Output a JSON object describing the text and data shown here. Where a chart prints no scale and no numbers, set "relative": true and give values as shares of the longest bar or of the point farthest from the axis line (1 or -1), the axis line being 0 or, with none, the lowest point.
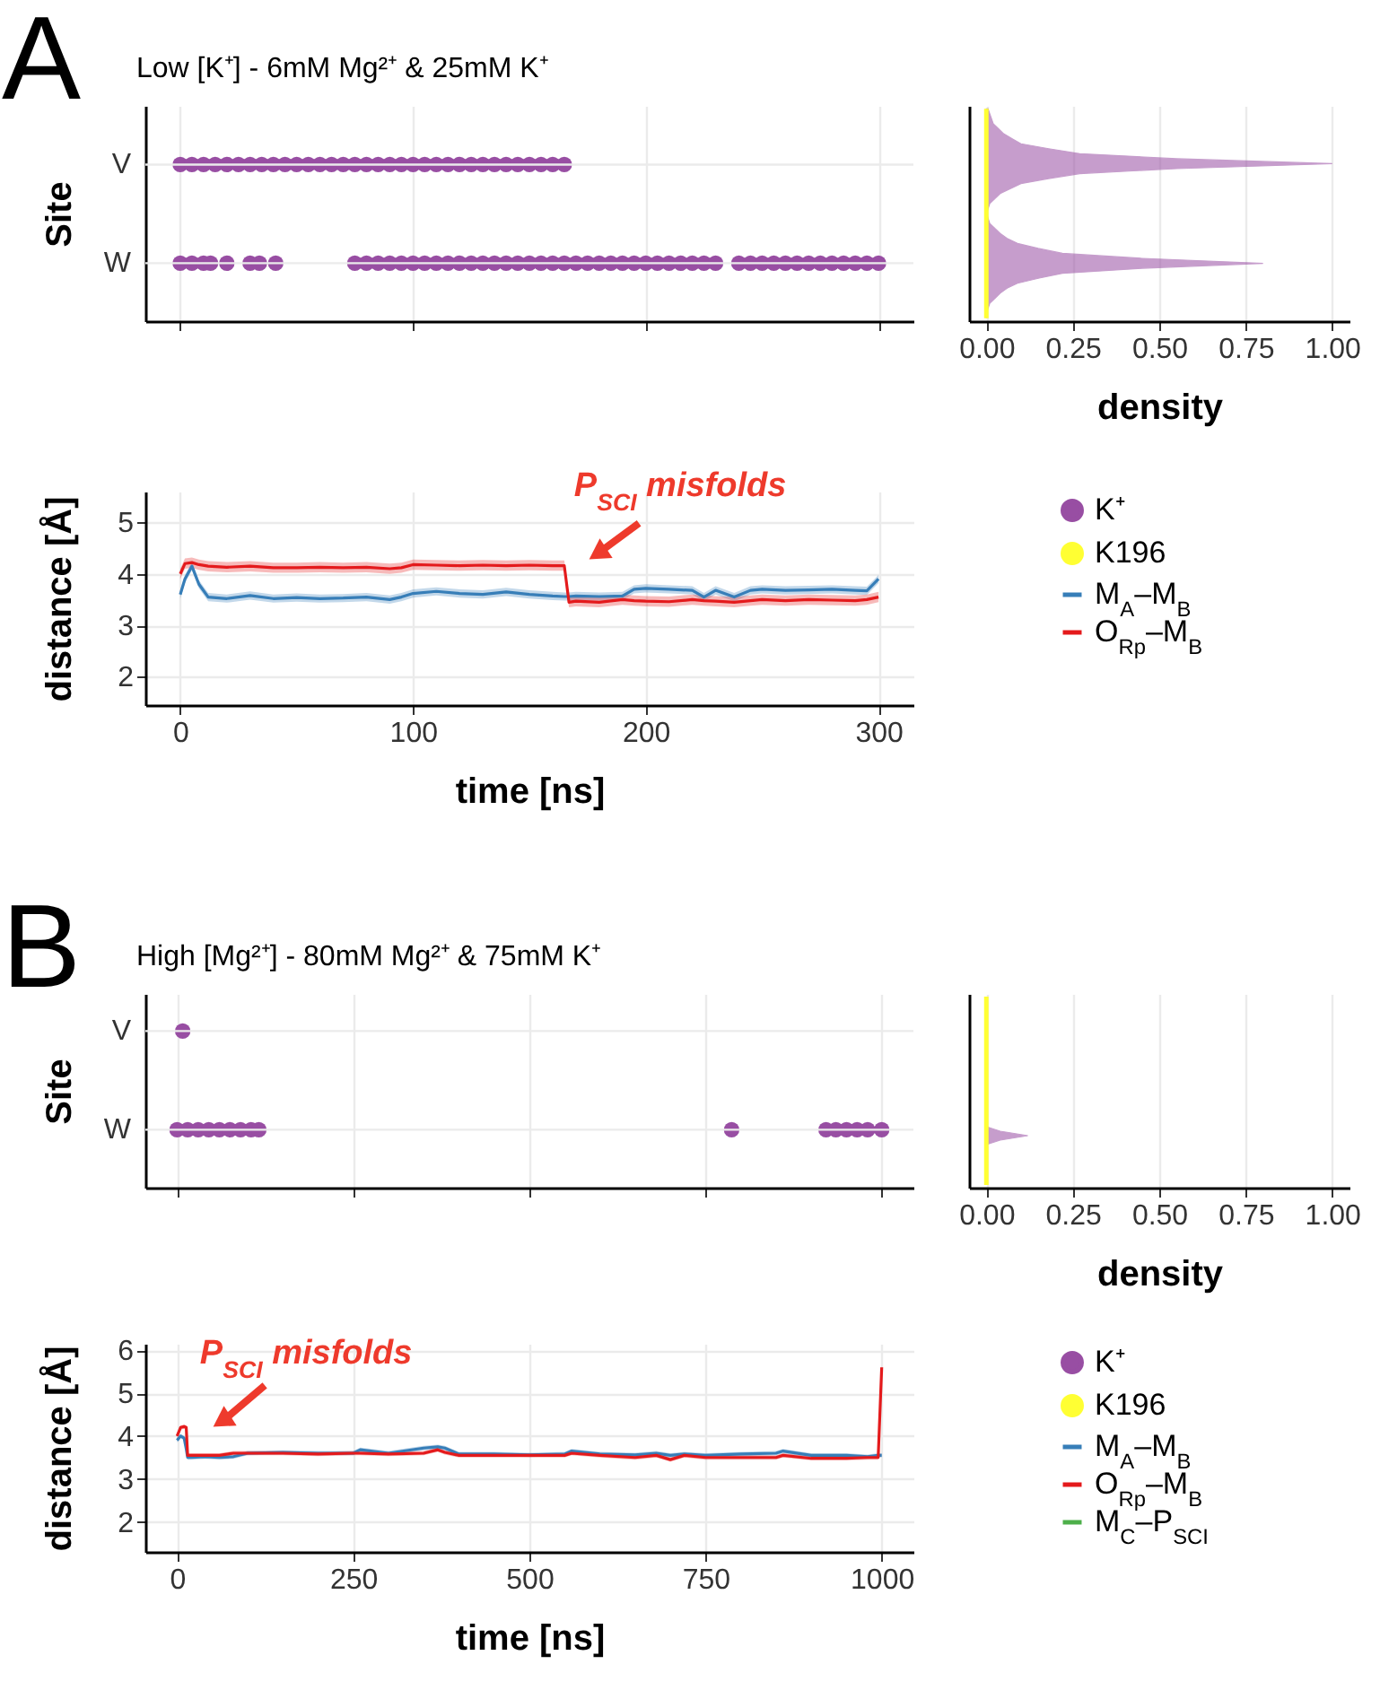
{
  "chart_data": [
    {
      "type": "scatter",
      "relative": true,
      "title": "Low [K⁺] - 6mM Mg²⁺ & 25mM K⁺",
      "annotations": [
        "A",
        "V",
        "W"
      ],
      "ylabel": "Site",
      "xlim": [
        -15,
        315
      ],
      "xticks": [
        0,
        100,
        200,
        300
      ],
      "tick_labels": false,
      "grid": "x",
      "marker": "circle",
      "series": [
        {
          "name": "K⁺",
          "color": "#984ea3",
          "x": [
            0,
            5,
            10,
            15,
            20,
            25,
            30,
            35,
            40,
            45,
            50,
            55,
            60,
            65,
            70,
            75,
            80,
            85,
            90,
            95,
            100,
            105,
            110,
            115,
            120,
            125,
            130,
            135,
            140,
            145,
            150,
            155,
            160,
            165,
            0,
            5,
            10,
            13,
            20,
            30,
            34,
            41,
            75,
            80,
            85,
            90,
            95,
            100,
            105,
            110,
            115,
            120,
            125,
            130,
            135,
            140,
            145,
            150,
            155,
            160,
            165,
            170,
            175,
            180,
            185,
            190,
            195,
            200,
            205,
            210,
            215,
            220,
            225,
            230,
            240,
            245,
            250,
            255,
            260,
            265,
            270,
            275,
            280,
            285,
            290,
            295,
            300
          ],
          "values": [
            1,
            1,
            1,
            1,
            1,
            1,
            1,
            1,
            1,
            1,
            1,
            1,
            1,
            1,
            1,
            1,
            1,
            1,
            1,
            1,
            1,
            1,
            1,
            1,
            1,
            1,
            1,
            1,
            1,
            1,
            1,
            1,
            1,
            1,
            0.37,
            0.37,
            0.37,
            0.37,
            0.37,
            0.37,
            0.37,
            0.37,
            0.37,
            0.37,
            0.37,
            0.37,
            0.37,
            0.37,
            0.37,
            0.37,
            0.37,
            0.37,
            0.37,
            0.37,
            0.37,
            0.37,
            0.37,
            0.37,
            0.37,
            0.37,
            0.37,
            0.37,
            0.37,
            0.37,
            0.37,
            0.37,
            0.37,
            0.37,
            0.37,
            0.37,
            0.37,
            0.37,
            0.37,
            0.37,
            0.37,
            0.37,
            0.37,
            0.37,
            0.37,
            0.37,
            0.37,
            0.37,
            0.37,
            0.37,
            0.37,
            0.37,
            0.37
          ]
        }
      ]
    },
    {
      "type": "area",
      "orientation": "horizontal",
      "xlabel": "density",
      "xlim": [
        -0.05,
        1.05
      ],
      "xticks": [
        {
          "value": 0,
          "label": "0.00"
        },
        {
          "value": 0.25,
          "label": "0.25"
        },
        {
          "value": 0.5,
          "label": "0.50"
        },
        {
          "value": 0.75,
          "label": "0.75"
        },
        {
          "value": 1,
          "label": "1.00"
        }
      ],
      "tick_labels": "x",
      "grid": "x",
      "categories": [
        null,
        null,
        null,
        null,
        null,
        null,
        null,
        null,
        null,
        null,
        null,
        null,
        null,
        null,
        null,
        null,
        null,
        null,
        null,
        null,
        null,
        null,
        null,
        null,
        null,
        null,
        null,
        null,
        null,
        null,
        null,
        null,
        null,
        null,
        null,
        null,
        null,
        null,
        null,
        null,
        null,
        null,
        null
      ],
      "series": [
        {
          "color": "#984ea3",
          "values": [
            0.005,
            0.01,
            0.015,
            0.02,
            0.035,
            0.05,
            0.075,
            0.1,
            0.18,
            0.27,
            0.55,
            1.0,
            0.55,
            0.27,
            0.18,
            0.1,
            0.07,
            0.04,
            0.025,
            0.01,
            0.005,
            0,
            0.005,
            0.01,
            0.025,
            0.04,
            0.06,
            0.09,
            0.15,
            0.22,
            0.45,
            0.8,
            0.45,
            0.22,
            0.15,
            0.09,
            0.06,
            0.04,
            0.025,
            0.01,
            0.005,
            0,
            0
          ]
        },
        {
          "name": "K196",
          "type": "line",
          "color": "#ffff33",
          "values": [
            0,
            0,
            0,
            0,
            0,
            0,
            0,
            0,
            0,
            0,
            0,
            0,
            0,
            0,
            0,
            0,
            0,
            0,
            0,
            0,
            0,
            0,
            0,
            0,
            0,
            0,
            0,
            0,
            0,
            0,
            0,
            0,
            0,
            0,
            0,
            0,
            0,
            0,
            0,
            0,
            0,
            0,
            0
          ]
        }
      ]
    },
    {
      "type": "line",
      "xlabel": "time [ns]",
      "ylabel": "distance [Å]",
      "xlim": [
        -15,
        315
      ],
      "xticks": [
        0,
        100,
        200,
        300
      ],
      "ylim": [
        1.45,
        5.6
      ],
      "yticks": [
        2,
        3,
        4,
        5
      ],
      "grid": true,
      "legend": "right",
      "line_style": "solid",
      "annotations": [
        {
          "text": "P$_{SCI}$ misfolds",
          "x": 167,
          "y": 3.45
        }
      ],
      "x": [
        0,
        2,
        5,
        8,
        12,
        20,
        30,
        40,
        50,
        60,
        70,
        80,
        90,
        95,
        100,
        110,
        120,
        130,
        140,
        150,
        160,
        165,
        167,
        170,
        180,
        190,
        195,
        200,
        210,
        220,
        225,
        230,
        238,
        245,
        250,
        260,
        270,
        280,
        290,
        295,
        300
      ],
      "series": [
        {
          "name": "M$_{A}$–M$_{B}$",
          "color": "#377eb8",
          "values": [
            3.6,
            3.9,
            4.15,
            3.8,
            3.55,
            3.52,
            3.58,
            3.52,
            3.54,
            3.52,
            3.53,
            3.55,
            3.5,
            3.55,
            3.62,
            3.66,
            3.62,
            3.6,
            3.65,
            3.6,
            3.57,
            3.56,
            3.56,
            3.57,
            3.56,
            3.57,
            3.7,
            3.72,
            3.7,
            3.68,
            3.55,
            3.68,
            3.55,
            3.68,
            3.7,
            3.68,
            3.69,
            3.7,
            3.68,
            3.67,
            3.9
          ],
          "lower": [
            3.52,
            3.82,
            4.07,
            3.72,
            3.47,
            3.44,
            3.5,
            3.44,
            3.46,
            3.44,
            3.45,
            3.47,
            3.42,
            3.47,
            3.54,
            3.58,
            3.54,
            3.52,
            3.57,
            3.52,
            3.49,
            3.48,
            3.48,
            3.49,
            3.48,
            3.49,
            3.62,
            3.64,
            3.62,
            3.6,
            3.47,
            3.6,
            3.47,
            3.6,
            3.62,
            3.6,
            3.61,
            3.62,
            3.6,
            3.59,
            3.82
          ],
          "upper": [
            3.68,
            3.98,
            4.23,
            3.88,
            3.63,
            3.6,
            3.66,
            3.6,
            3.62,
            3.6,
            3.61,
            3.63,
            3.58,
            3.63,
            3.7,
            3.74,
            3.7,
            3.68,
            3.73,
            3.68,
            3.65,
            3.64,
            3.64,
            3.65,
            3.64,
            3.65,
            3.78,
            3.8,
            3.78,
            3.76,
            3.63,
            3.76,
            3.63,
            3.76,
            3.78,
            3.76,
            3.77,
            3.78,
            3.76,
            3.75,
            3.98
          ]
        },
        {
          "name": "O$_{Rp}$–M$_{B}$",
          "color": "#e41a1c",
          "values": [
            4.0,
            4.2,
            4.22,
            4.18,
            4.15,
            4.13,
            4.15,
            4.12,
            4.12,
            4.13,
            4.12,
            4.13,
            4.1,
            4.12,
            4.18,
            4.17,
            4.16,
            4.17,
            4.16,
            4.17,
            4.16,
            4.16,
            3.45,
            3.47,
            3.45,
            3.5,
            3.48,
            3.47,
            3.46,
            3.5,
            3.48,
            3.47,
            3.45,
            3.48,
            3.5,
            3.48,
            3.5,
            3.49,
            3.48,
            3.5,
            3.55
          ],
          "lower": [
            3.9,
            4.1,
            4.12,
            4.08,
            4.05,
            4.03,
            4.05,
            4.02,
            4.02,
            4.03,
            4.02,
            4.03,
            4.0,
            4.02,
            4.08,
            4.07,
            4.06,
            4.07,
            4.06,
            4.07,
            4.06,
            4.06,
            3.35,
            3.37,
            3.35,
            3.4,
            3.38,
            3.37,
            3.36,
            3.4,
            3.38,
            3.37,
            3.35,
            3.38,
            3.4,
            3.38,
            3.4,
            3.39,
            3.38,
            3.4,
            3.45
          ],
          "upper": [
            4.1,
            4.3,
            4.32,
            4.28,
            4.25,
            4.23,
            4.25,
            4.22,
            4.22,
            4.23,
            4.22,
            4.23,
            4.2,
            4.22,
            4.28,
            4.27,
            4.26,
            4.27,
            4.26,
            4.27,
            4.26,
            4.26,
            3.55,
            3.57,
            3.55,
            3.6,
            3.58,
            3.57,
            3.56,
            3.6,
            3.58,
            3.57,
            3.55,
            3.58,
            3.6,
            3.58,
            3.6,
            3.59,
            3.58,
            3.6,
            3.65
          ]
        }
      ]
    },
    {
      "type": "scatter",
      "relative": true,
      "title": "High [Mg²⁺] - 80mM Mg²⁺ & 75mM K⁺",
      "annotations": [
        "B",
        "V",
        "W"
      ],
      "ylabel": "Site",
      "xlim": [
        -45,
        1045
      ],
      "xticks": [
        0,
        250,
        500,
        750,
        1000
      ],
      "tick_labels": false,
      "grid": "x",
      "marker": "circle",
      "series": [
        {
          "name": "K⁺",
          "color": "#984ea3",
          "x": [
            8,
            0,
            15,
            30,
            45,
            60,
            75,
            90,
            105,
            116,
            787,
            921,
            935,
            950,
            965,
            980,
            1000
          ],
          "values": [
            1,
            0.37,
            0.37,
            0.37,
            0.37,
            0.37,
            0.37,
            0.37,
            0.37,
            0.37,
            0.37,
            0.37,
            0.37,
            0.37,
            0.37,
            0.37,
            0.37
          ]
        }
      ]
    },
    {
      "type": "area",
      "orientation": "horizontal",
      "xlabel": "density",
      "xlim": [
        -0.05,
        1.05
      ],
      "xticks": [
        {
          "value": 0,
          "label": "0.00"
        },
        {
          "value": 0.25,
          "label": "0.25"
        },
        {
          "value": 0.5,
          "label": "0.50"
        },
        {
          "value": 0.75,
          "label": "0.75"
        },
        {
          "value": 1,
          "label": "1.00"
        }
      ],
      "tick_labels": "x",
      "grid": "x",
      "categories": [
        null,
        null,
        null,
        null,
        null,
        null,
        null,
        null,
        null,
        null,
        null,
        null,
        null,
        null,
        null,
        null,
        null,
        null,
        null,
        null,
        null,
        null,
        null,
        null,
        null,
        null,
        null,
        null,
        null,
        null,
        null,
        null,
        null,
        null,
        null,
        null,
        null,
        null,
        null,
        null,
        null,
        null,
        null
      ],
      "series": [
        {
          "color": "#984ea3",
          "values": [
            0,
            0,
            0,
            0,
            0,
            0,
            0,
            0,
            0,
            0,
            0,
            0,
            0,
            0,
            0,
            0,
            0,
            0,
            0,
            0,
            0,
            0,
            0,
            0,
            0,
            0,
            0,
            0,
            0,
            0,
            0.04,
            0.12,
            0.04,
            0,
            0,
            0,
            0,
            0,
            0,
            0,
            0,
            0,
            0
          ]
        },
        {
          "name": "K196",
          "type": "line",
          "color": "#ffff33",
          "values": [
            0,
            0,
            0,
            0,
            0,
            0,
            0,
            0,
            0,
            0,
            0,
            0,
            0,
            0,
            0,
            0,
            0,
            0,
            0,
            0,
            0,
            0,
            0,
            0,
            0,
            0,
            0,
            0,
            0,
            0,
            0,
            0,
            0,
            0,
            0,
            0,
            0,
            0,
            0,
            0,
            0,
            0,
            0
          ]
        }
      ]
    },
    {
      "type": "line",
      "xlabel": "time [ns]",
      "ylabel": "distance [Å]",
      "xlim": [
        -45,
        1045
      ],
      "xticks": [
        0,
        250,
        500,
        750,
        1000
      ],
      "ylim": [
        1.3,
        6.15
      ],
      "yticks": [
        2,
        3,
        4,
        5,
        6
      ],
      "grid": true,
      "legend": "right",
      "line_style": "solid",
      "annotations": [
        {
          "text": "P$_{SCI}$ misfolds",
          "x": 15,
          "y": 3.55
        }
      ],
      "x": [
        0,
        5,
        10,
        13,
        15,
        20,
        40,
        60,
        80,
        100,
        150,
        200,
        250,
        260,
        300,
        350,
        370,
        380,
        400,
        450,
        500,
        550,
        560,
        600,
        650,
        680,
        700,
        720,
        750,
        800,
        850,
        860,
        900,
        950,
        980,
        995,
        1000
      ],
      "series": [
        {
          "name": "M$_{A}$–M$_{B}$",
          "color": "#377eb8",
          "values": [
            3.9,
            4.0,
            3.95,
            3.7,
            3.5,
            3.5,
            3.52,
            3.5,
            3.52,
            3.6,
            3.62,
            3.6,
            3.6,
            3.68,
            3.6,
            3.72,
            3.75,
            3.72,
            3.58,
            3.58,
            3.56,
            3.58,
            3.65,
            3.58,
            3.56,
            3.6,
            3.55,
            3.58,
            3.55,
            3.58,
            3.6,
            3.65,
            3.55,
            3.55,
            3.52,
            3.55,
            3.55
          ],
          "lower": [
            3.85,
            3.95,
            3.9,
            3.65,
            3.45,
            3.45,
            3.47,
            3.45,
            3.47,
            3.55,
            3.57,
            3.55,
            3.55,
            3.63,
            3.55,
            3.67,
            3.7,
            3.67,
            3.53,
            3.53,
            3.51,
            3.53,
            3.6,
            3.53,
            3.51,
            3.55,
            3.5,
            3.53,
            3.5,
            3.53,
            3.55,
            3.6,
            3.5,
            3.5,
            3.47,
            3.5,
            3.5
          ],
          "upper": [
            3.95,
            4.05,
            4.0,
            3.75,
            3.55,
            3.55,
            3.57,
            3.55,
            3.57,
            3.65,
            3.67,
            3.65,
            3.65,
            3.73,
            3.65,
            3.77,
            3.8,
            3.77,
            3.63,
            3.63,
            3.61,
            3.63,
            3.7,
            3.63,
            3.61,
            3.65,
            3.6,
            3.63,
            3.6,
            3.63,
            3.65,
            3.7,
            3.6,
            3.6,
            3.57,
            3.6,
            3.6
          ]
        },
        {
          "name": "O$_{Rp}$–M$_{B}$",
          "color": "#e41a1c",
          "values": [
            4.0,
            4.2,
            4.22,
            4.2,
            3.55,
            3.55,
            3.55,
            3.55,
            3.6,
            3.6,
            3.6,
            3.58,
            3.6,
            3.6,
            3.58,
            3.6,
            3.68,
            3.62,
            3.55,
            3.55,
            3.55,
            3.55,
            3.6,
            3.55,
            3.5,
            3.55,
            3.45,
            3.55,
            3.5,
            3.5,
            3.5,
            3.55,
            3.48,
            3.48,
            3.5,
            3.5,
            5.6
          ],
          "lower": [
            3.95,
            4.15,
            4.17,
            4.15,
            3.5,
            3.5,
            3.5,
            3.5,
            3.55,
            3.55,
            3.55,
            3.53,
            3.55,
            3.55,
            3.53,
            3.55,
            3.63,
            3.57,
            3.5,
            3.5,
            3.5,
            3.5,
            3.55,
            3.5,
            3.45,
            3.5,
            3.4,
            3.5,
            3.45,
            3.45,
            3.45,
            3.5,
            3.43,
            3.43,
            3.45,
            3.45,
            5.55
          ],
          "upper": [
            4.05,
            4.25,
            4.27,
            4.25,
            3.6,
            3.6,
            3.6,
            3.6,
            3.65,
            3.65,
            3.65,
            3.63,
            3.65,
            3.65,
            3.63,
            3.65,
            3.73,
            3.67,
            3.6,
            3.6,
            3.6,
            3.6,
            3.65,
            3.6,
            3.55,
            3.6,
            3.5,
            3.6,
            3.55,
            3.55,
            3.55,
            3.6,
            3.53,
            3.53,
            3.55,
            3.55,
            5.65
          ]
        },
        {
          "name": "M$_{C}$–P$_{SCI}$",
          "color": "#4daf4a",
          "values": [
            null,
            null,
            null,
            null,
            null,
            null,
            null,
            null,
            null,
            null,
            null,
            null,
            null,
            null,
            null,
            null,
            null,
            null,
            null,
            null,
            null,
            null,
            null,
            null,
            null,
            null,
            null,
            null,
            null,
            null,
            null,
            null,
            null,
            null,
            null,
            null,
            null
          ]
        }
      ]
    }
  ]
}
